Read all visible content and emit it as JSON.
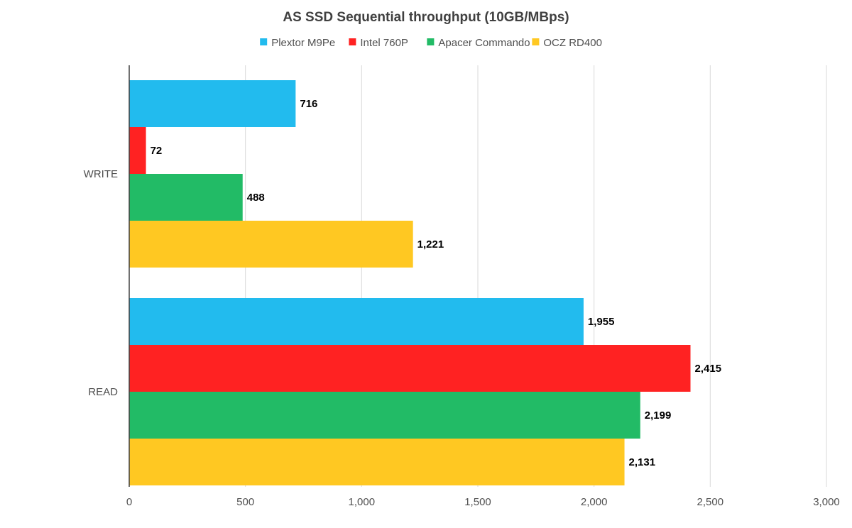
{
  "chart_data": {
    "type": "bar",
    "orientation": "horizontal",
    "title": "AS SSD Sequential throughput (10GB/MBps)",
    "categories": [
      "WRITE",
      "READ"
    ],
    "series": [
      {
        "name": "Plextor M9Pe",
        "color": "#22bbee",
        "values": [
          716,
          1955
        ]
      },
      {
        "name": "Intel 760P",
        "color": "#ff2222",
        "values": [
          72,
          2415
        ]
      },
      {
        "name": "Apacer Commando",
        "color": "#22bb66",
        "values": [
          488,
          2199
        ]
      },
      {
        "name": "OCZ RD400",
        "color": "#ffc822",
        "values": [
          1221,
          2131
        ]
      }
    ],
    "value_labels": [
      [
        "716",
        "1,955"
      ],
      [
        "72",
        "2,415"
      ],
      [
        "488",
        "2,199"
      ],
      [
        "1,221",
        "2,131"
      ]
    ],
    "xlim": [
      0,
      3000
    ],
    "xticks": [
      0,
      500,
      1000,
      1500,
      2000,
      2500,
      3000
    ],
    "xtick_labels": [
      "0",
      "500",
      "1,000",
      "1,500",
      "2,000",
      "2,500",
      "3,000"
    ],
    "xlabel": "",
    "ylabel": "",
    "grid": true,
    "gridline_color": "#d9d9d9",
    "axis_color": "#404040",
    "legend_position": "top"
  }
}
